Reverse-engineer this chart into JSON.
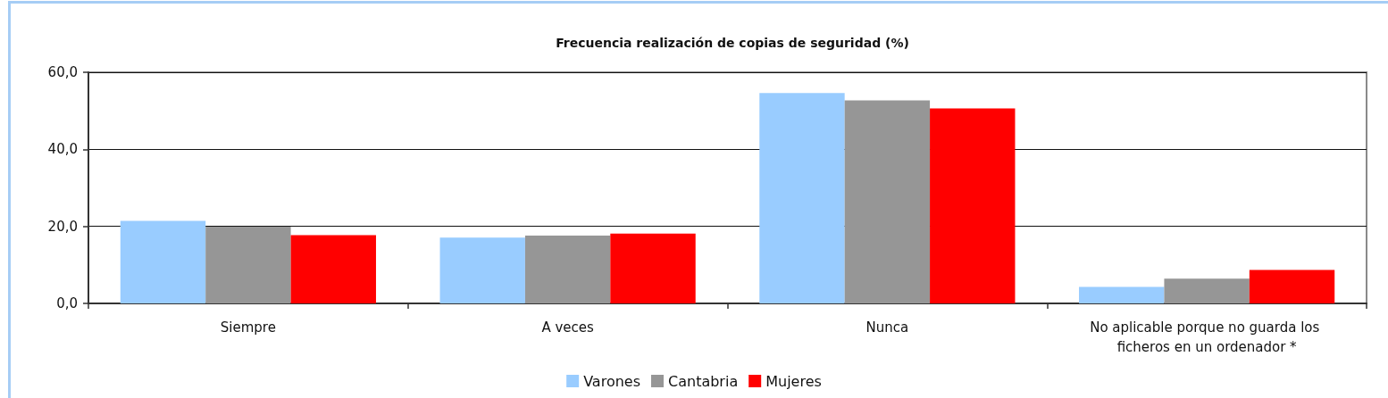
{
  "chart_data": {
    "type": "bar",
    "title": "Frecuencia realización de copias de seguridad (%)",
    "categories": [
      "Siempre",
      "A veces",
      "Nunca",
      "No aplicable porque no guarda los ficheros en un ordenador *"
    ],
    "series": [
      {
        "name": "Varones",
        "color": "#99ccff",
        "values": [
          21.4,
          17.1,
          54.6,
          4.3
        ]
      },
      {
        "name": "Cantabria",
        "color": "#969696",
        "values": [
          19.9,
          17.6,
          52.7,
          6.4
        ]
      },
      {
        "name": "Mujeres",
        "color": "#ff0000",
        "values": [
          17.7,
          18.1,
          50.6,
          8.7
        ]
      }
    ],
    "ylim": [
      0,
      60
    ],
    "yticks": [
      {
        "value": 0,
        "label": "0,0"
      },
      {
        "value": 20,
        "label": "20,0"
      },
      {
        "value": 40,
        "label": "40,0"
      },
      {
        "value": 60,
        "label": "60,0"
      }
    ],
    "grid": "y",
    "legend": "bottom"
  }
}
